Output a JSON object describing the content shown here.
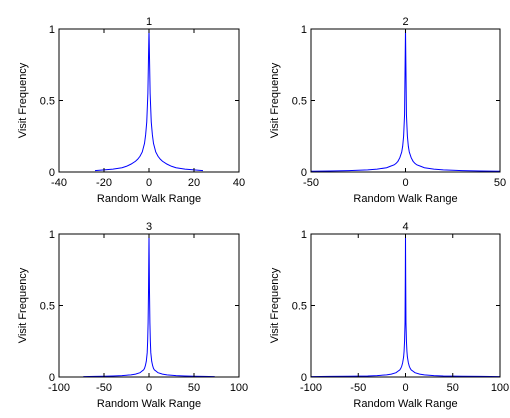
{
  "figure": {
    "background": "#ffffff",
    "line_color": "#0000ff",
    "axis_color": "#000000"
  },
  "chart_data": [
    {
      "type": "line",
      "title": "1",
      "xlabel": "Random Walk Range",
      "ylabel": "Visit Frequency",
      "xlim": [
        -40,
        40
      ],
      "ylim": [
        0,
        1
      ],
      "xticks": [
        -40,
        -20,
        0,
        20,
        40
      ],
      "xtick_labels": [
        "-40",
        "-20",
        "0",
        "20",
        "40"
      ],
      "yticks": [
        0,
        0.5,
        1
      ],
      "ytick_labels": [
        "0",
        "0.5",
        "1"
      ],
      "grid": false,
      "series": [
        {
          "x": [
            -24,
            -20,
            -16,
            -12,
            -10,
            -8,
            -6,
            -5,
            -4,
            -3,
            -2,
            -1.5,
            -1,
            -0.5,
            0,
            0.5,
            1,
            1.5,
            2,
            3,
            4,
            5,
            6,
            8,
            10,
            12,
            16,
            20,
            24
          ],
          "y": [
            0.01,
            0.015,
            0.02,
            0.03,
            0.04,
            0.055,
            0.075,
            0.09,
            0.11,
            0.14,
            0.2,
            0.26,
            0.35,
            0.55,
            1.0,
            0.55,
            0.35,
            0.26,
            0.2,
            0.14,
            0.11,
            0.09,
            0.075,
            0.055,
            0.04,
            0.03,
            0.02,
            0.015,
            0.01
          ]
        }
      ]
    },
    {
      "type": "line",
      "title": "2",
      "xlabel": "Random Walk Range",
      "ylabel": "Visit Frequency",
      "xlim": [
        -50,
        50
      ],
      "ylim": [
        0,
        1
      ],
      "xticks": [
        -50,
        0,
        50
      ],
      "xtick_labels": [
        "-50",
        "0",
        "50"
      ],
      "yticks": [
        0,
        0.5,
        1
      ],
      "ytick_labels": [
        "0",
        "0.5",
        "1"
      ],
      "grid": false,
      "series": [
        {
          "x": [
            -50,
            -40,
            -30,
            -20,
            -15,
            -10,
            -8,
            -6,
            -5,
            -4,
            -3,
            -2,
            -1.5,
            -1,
            -0.5,
            -0.2,
            0,
            0.2,
            0.5,
            1,
            1.5,
            2,
            3,
            4,
            5,
            6,
            8,
            10,
            15,
            20,
            30,
            40,
            50
          ],
          "y": [
            0.005,
            0.007,
            0.01,
            0.015,
            0.02,
            0.03,
            0.04,
            0.05,
            0.06,
            0.075,
            0.1,
            0.14,
            0.18,
            0.25,
            0.4,
            0.76,
            1.0,
            0.76,
            0.4,
            0.25,
            0.18,
            0.14,
            0.1,
            0.075,
            0.06,
            0.05,
            0.04,
            0.03,
            0.02,
            0.015,
            0.01,
            0.007,
            0.005
          ]
        }
      ]
    },
    {
      "type": "line",
      "title": "3",
      "xlabel": "Random Walk Range",
      "ylabel": "Visit Frequency",
      "xlim": [
        -100,
        100
      ],
      "ylim": [
        0,
        1
      ],
      "xticks": [
        -100,
        -50,
        0,
        50,
        100
      ],
      "xtick_labels": [
        "-100",
        "-50",
        "0",
        "50",
        "100"
      ],
      "yticks": [
        0,
        0.5,
        1
      ],
      "ytick_labels": [
        "0",
        "0.5",
        "1"
      ],
      "grid": false,
      "series": [
        {
          "x": [
            -73,
            -60,
            -50,
            -40,
            -30,
            -20,
            -15,
            -10,
            -8,
            -6,
            -5,
            -4,
            -3,
            -2,
            -1.5,
            -1,
            -0.5,
            0,
            0.5,
            1,
            1.5,
            2,
            3,
            4,
            5,
            6,
            8,
            10,
            15,
            20,
            30,
            40,
            50,
            60,
            73
          ],
          "y": [
            0.003,
            0.004,
            0.005,
            0.007,
            0.01,
            0.015,
            0.02,
            0.03,
            0.04,
            0.05,
            0.06,
            0.08,
            0.11,
            0.17,
            0.25,
            0.38,
            0.62,
            1.0,
            0.62,
            0.38,
            0.25,
            0.17,
            0.11,
            0.08,
            0.06,
            0.05,
            0.04,
            0.03,
            0.02,
            0.015,
            0.01,
            0.007,
            0.005,
            0.004,
            0.003
          ]
        }
      ]
    },
    {
      "type": "line",
      "title": "4",
      "xlabel": "Random Walk Range",
      "ylabel": "Visit Frequency",
      "xlim": [
        -100,
        100
      ],
      "ylim": [
        0,
        1
      ],
      "xticks": [
        -100,
        -50,
        0,
        50,
        100
      ],
      "xtick_labels": [
        "-100",
        "-50",
        "0",
        "50",
        "100"
      ],
      "yticks": [
        0,
        0.5,
        1
      ],
      "ytick_labels": [
        "0",
        "0.5",
        "1"
      ],
      "grid": false,
      "series": [
        {
          "x": [
            -100,
            -80,
            -60,
            -40,
            -30,
            -20,
            -15,
            -10,
            -8,
            -6,
            -5,
            -4,
            -3,
            -2,
            -1.5,
            -1,
            -0.5,
            -0.2,
            0,
            0.2,
            0.5,
            1,
            1.5,
            2,
            3,
            4,
            5,
            6,
            8,
            10,
            15,
            20,
            30,
            40,
            60,
            80,
            100
          ],
          "y": [
            0.003,
            0.004,
            0.005,
            0.007,
            0.01,
            0.015,
            0.02,
            0.03,
            0.04,
            0.05,
            0.06,
            0.075,
            0.1,
            0.14,
            0.18,
            0.25,
            0.38,
            0.7,
            1.0,
            0.7,
            0.38,
            0.25,
            0.18,
            0.14,
            0.1,
            0.075,
            0.06,
            0.05,
            0.04,
            0.03,
            0.02,
            0.015,
            0.01,
            0.007,
            0.005,
            0.004,
            0.003
          ]
        }
      ]
    }
  ]
}
